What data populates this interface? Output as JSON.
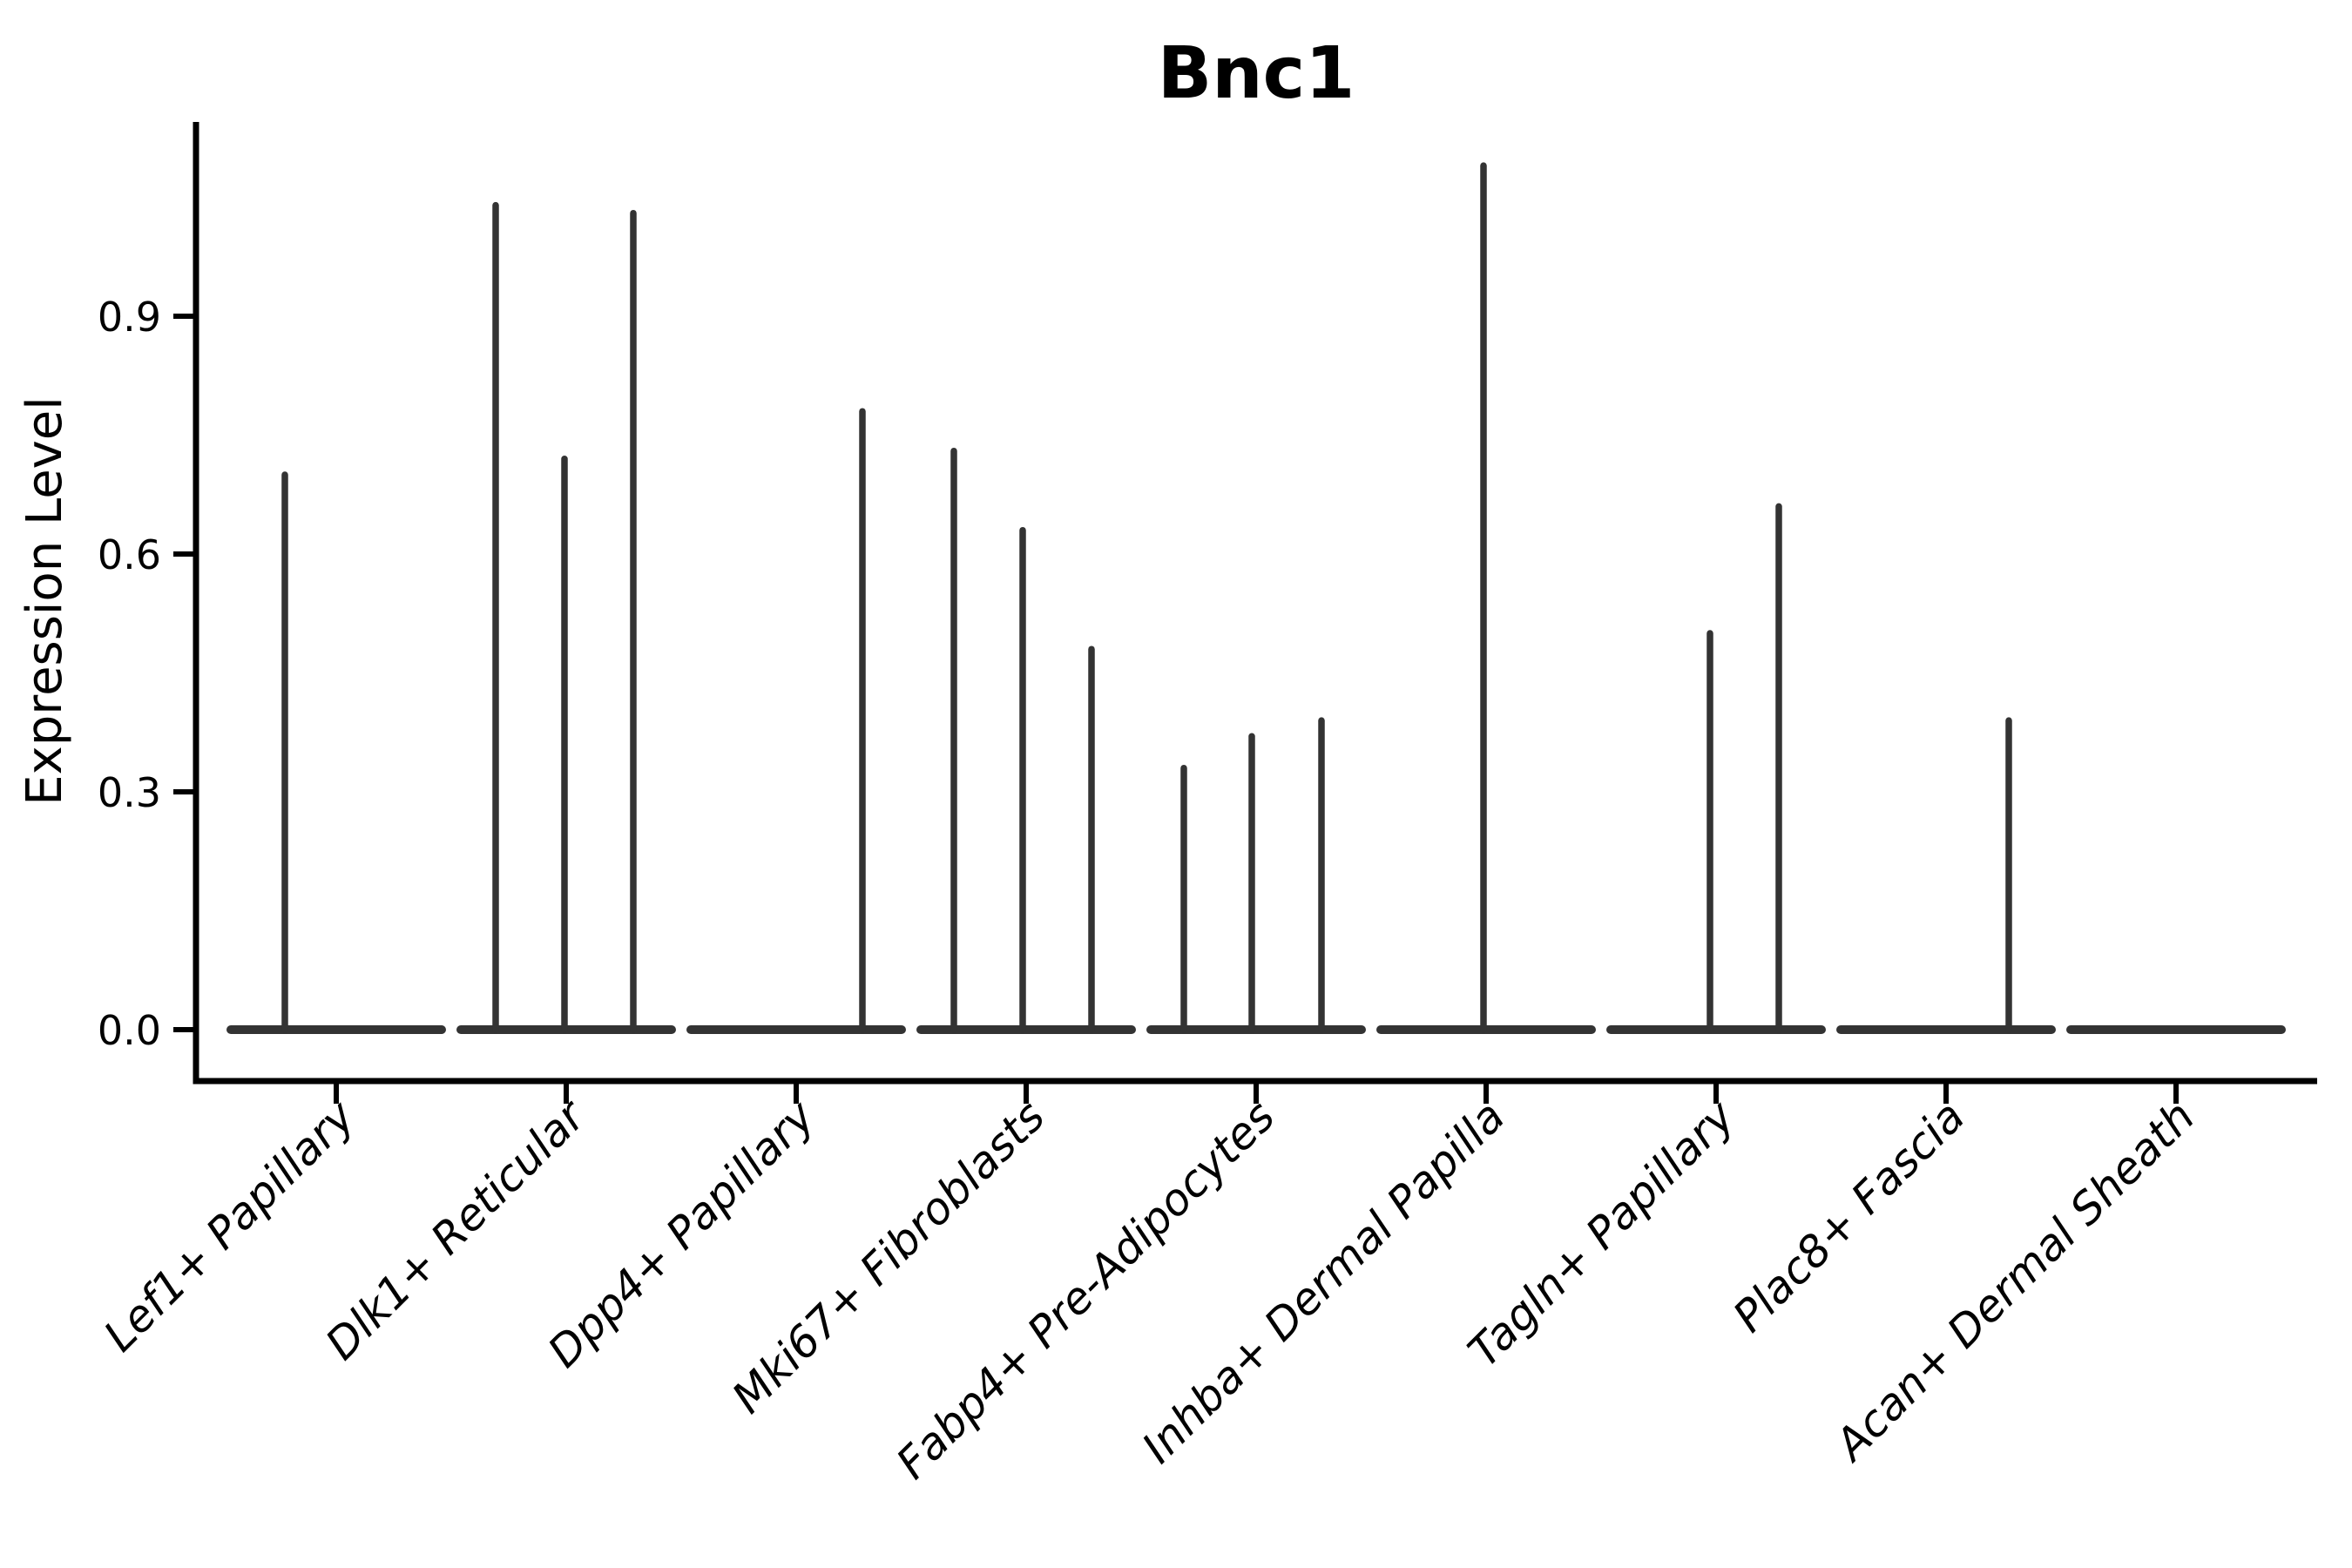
{
  "title": "Bnc1",
  "colors": {
    "background": "#ffffff",
    "violin_stroke": "#333333",
    "axis": "#000000",
    "text": "#000000"
  },
  "chart_data": {
    "type": "violin",
    "title": "Bnc1",
    "xlabel": "",
    "ylabel": "Expression Level",
    "ylim": [
      0,
      1.15
    ],
    "grid": false,
    "legend": "none",
    "yticks": [
      0.0,
      0.3,
      0.6,
      0.9
    ],
    "ytick_labels": [
      "0.0",
      "0.3",
      "0.6",
      "0.9"
    ],
    "categories": [
      "Lef1+ Papillary",
      "Dlk1+ Reticular",
      "Dpp4+ Papillary",
      "Mki67+ Fibroblasts",
      "Fabp4+ Pre-Adipocytes",
      "Inhba+ Dermal Papilla",
      "Tagln+ Papillary",
      "Plac8+ Fascia",
      "Acan+ Dermal Sheath"
    ],
    "groups": [
      {
        "label": "Lef1+ Papillary",
        "spikes": [
          {
            "dx": -59,
            "value": 0.7
          }
        ]
      },
      {
        "label": "Dlk1+ Reticular",
        "spikes": [
          {
            "dx": -81,
            "value": 1.04
          },
          {
            "dx": -2,
            "value": 0.72
          },
          {
            "dx": 77,
            "value": 1.03
          }
        ]
      },
      {
        "label": "Dpp4+ Papillary",
        "spikes": [
          {
            "dx": 76,
            "value": 0.78
          }
        ]
      },
      {
        "label": "Mki67+ Fibroblasts",
        "spikes": [
          {
            "dx": -83,
            "value": 0.73
          },
          {
            "dx": -4,
            "value": 0.63
          },
          {
            "dx": 75,
            "value": 0.48
          }
        ]
      },
      {
        "label": "Fabp4+ Pre-Adipocytes",
        "spikes": [
          {
            "dx": -83,
            "value": 0.33
          },
          {
            "dx": -5,
            "value": 0.37
          },
          {
            "dx": 75,
            "value": 0.39
          }
        ]
      },
      {
        "label": "Inhba+ Dermal Papilla",
        "spikes": [
          {
            "dx": -3,
            "value": 1.09
          }
        ]
      },
      {
        "label": "Tagln+ Papillary",
        "spikes": [
          {
            "dx": -7,
            "value": 0.5
          },
          {
            "dx": 72,
            "value": 0.66
          }
        ]
      },
      {
        "label": "Plac8+ Fascia",
        "spikes": [
          {
            "dx": 72,
            "value": 0.39
          }
        ]
      },
      {
        "label": "Acan+ Dermal Sheath",
        "spikes": []
      }
    ]
  }
}
